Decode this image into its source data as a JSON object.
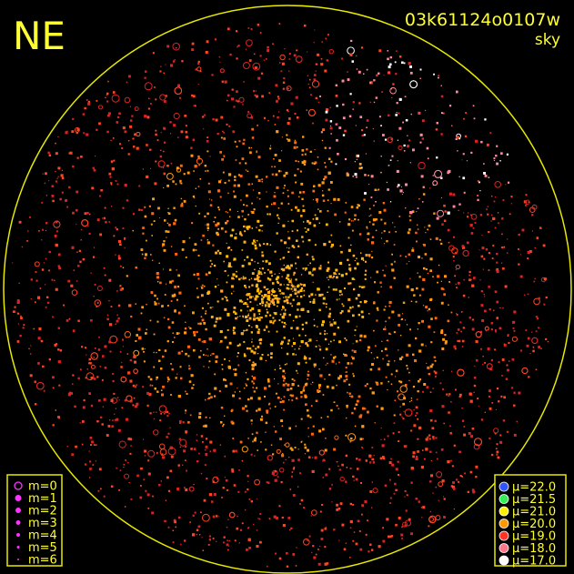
{
  "corner_label": "NE",
  "frame_id": "03k61124o0107w",
  "frame_type": "sky",
  "magnitude_legend": [
    {
      "label": "m=0"
    },
    {
      "label": "m=1"
    },
    {
      "label": "m=2"
    },
    {
      "label": "m=3"
    },
    {
      "label": "m=4"
    },
    {
      "label": "m=5"
    },
    {
      "label": "m=6"
    }
  ],
  "magnitude_color": "#ff33ff",
  "mu_legend": [
    {
      "label": "μ=22.0",
      "color": "#3355ff"
    },
    {
      "label": "μ=21.5",
      "color": "#33ee55"
    },
    {
      "label": "μ=21.0",
      "color": "#ffee00"
    },
    {
      "label": "μ=20.0",
      "color": "#ff9900"
    },
    {
      "label": "μ=19.0",
      "color": "#ff3322"
    },
    {
      "label": "μ=18.0",
      "color": "#ff7788"
    },
    {
      "label": "μ=17.0",
      "color": "#ffffff"
    }
  ]
}
